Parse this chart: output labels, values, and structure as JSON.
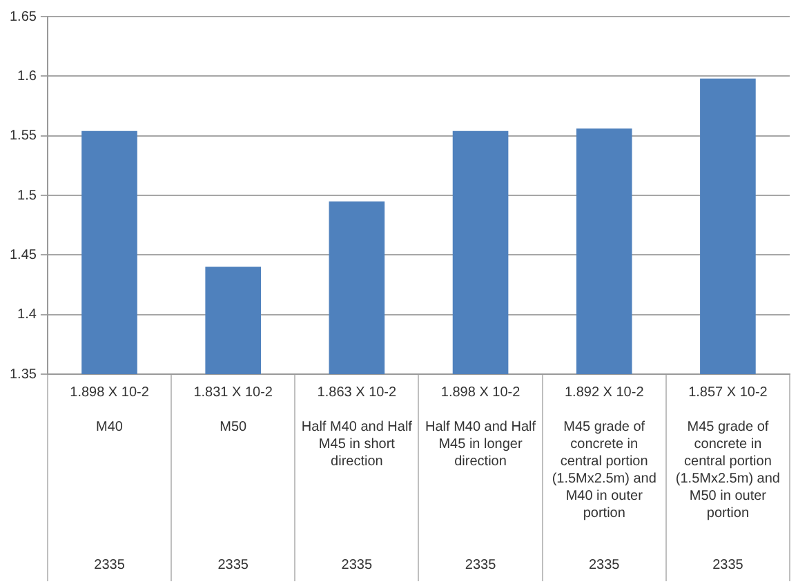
{
  "chart_data": {
    "type": "bar",
    "categories": [
      "1.898 X 10-2\nM40\n2335",
      "1.831 X 10-2\nM50\n2335",
      "1.863 X 10-2\nHalf M40 and Half M45 in short direction\n2335",
      "1.898 X 10-2\nHalf M40 and Half M45 in longer direction\n2335",
      "1.892 X 10-2\nM45 grade of concrete in central portion (1.5Mx2.5m) and M40 in outer portion\n2335",
      "1.857 X 10-2\nM45 grade of concrete in central portion (1.5Mx2.5m) and M50 in outer portion\n2335"
    ],
    "values": [
      1.554,
      1.44,
      1.495,
      1.554,
      1.556,
      1.598
    ],
    "color": "#4f81bd",
    "ylim": [
      1.35,
      1.65
    ],
    "yticks": [
      1.35,
      1.4,
      1.45,
      1.5,
      1.55,
      1.6,
      1.65
    ],
    "grid": "y",
    "legend": false
  }
}
